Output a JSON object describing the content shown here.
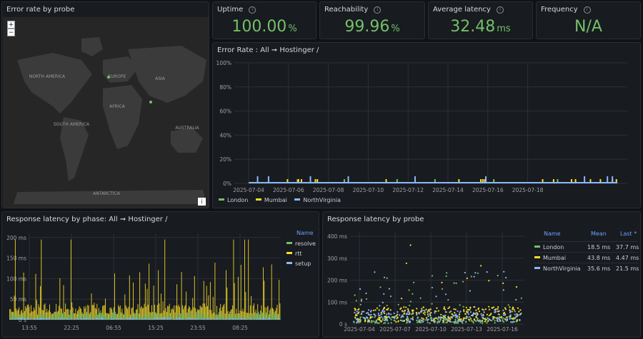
{
  "map_panel": {
    "title": "Error rate by probe",
    "zoom_in": "+",
    "zoom_out": "−",
    "info_button": "i",
    "labels": [
      "NORTH AMERICA",
      "EUROPE",
      "ASIA",
      "AFRICA",
      "SOUTH AMERICA",
      "AUSTRALIA",
      "ANTARCTICA"
    ]
  },
  "stats": [
    {
      "title": "Uptime",
      "value": "100.00",
      "unit": "%"
    },
    {
      "title": "Reachability",
      "value": "99.96",
      "unit": "%"
    },
    {
      "title": "Average latency",
      "value": "32.48",
      "unit": "ms"
    },
    {
      "title": "Frequency",
      "value": "N/A",
      "unit": ""
    }
  ],
  "error_rate": {
    "title": "Error Rate : All ➞ Hostinger /",
    "legend": [
      "London",
      "Mumbai",
      "NorthVirginia"
    ]
  },
  "phase": {
    "title": "Response latency by phase: All ➞ Hostinger /",
    "legend_header": "Name",
    "legend": [
      "resolve",
      "rtt",
      "setup"
    ]
  },
  "probe": {
    "title": "Response latency by probe",
    "headers": [
      "Name",
      "Mean",
      "Last *"
    ],
    "rows": [
      {
        "name": "London",
        "mean": "18.5 ms",
        "last": "37.7 ms"
      },
      {
        "name": "Mumbai",
        "mean": "43.8 ms",
        "last": "4.47 ms"
      },
      {
        "name": "NorthVirginia",
        "mean": "35.6 ms",
        "last": "21.5 ms"
      }
    ]
  },
  "colors": {
    "green": "#73bf69",
    "yellow": "#fade2a",
    "blue": "#8ab8ff",
    "legend_header": "#6e9fff"
  },
  "chart_data": [
    {
      "type": "bar",
      "title": "Error Rate : All ➞ Hostinger /",
      "x_ticks": [
        "2025-07-04",
        "2025-07-06",
        "2025-07-08",
        "2025-07-10",
        "2025-07-12",
        "2025-07-14",
        "2025-07-16",
        "2025-07-18"
      ],
      "y_ticks": [
        "0%",
        "20%",
        "40%",
        "60%",
        "80%",
        "100%"
      ],
      "ylim": [
        0,
        100
      ],
      "series": [
        {
          "name": "London",
          "spikes": [
            2.45,
            4.8,
            7.45,
            9.35,
            12.3,
            15.5
          ]
        },
        {
          "name": "Mumbai",
          "spikes": [
            1.95,
            2.5,
            2.65,
            3.35,
            3.45,
            6.9,
            10.55,
            11.65,
            11.75,
            11.85,
            14.75,
            15.3,
            16.2,
            16.4,
            17.15,
            17.65,
            18.25,
            18.45
          ]
        },
        {
          "name": "NorthVirginia",
          "spikes": [
            0.45,
            1.0,
            3.1,
            5.0,
            8.35,
            11.9,
            16.85,
            18.0,
            18.25
          ]
        }
      ],
      "legend_position": "bottom-left",
      "grid": true
    },
    {
      "type": "bar",
      "title": "Response latency by phase: All ➞ Hostinger /",
      "x_ticks": [
        "13:55",
        "22:25",
        "06:55",
        "15:25",
        "23:55",
        "08:25"
      ],
      "y_ticks": [
        "0 s",
        "50 ms",
        "100 ms",
        "150 ms",
        "200 ms"
      ],
      "ylim": [
        0,
        210
      ],
      "series": [
        {
          "name": "resolve",
          "typical": 8
        },
        {
          "name": "rtt",
          "typical": 40,
          "max": 195
        },
        {
          "name": "setup",
          "typical": 5
        }
      ],
      "legend_position": "right",
      "grid": true
    },
    {
      "type": "scatter",
      "title": "Response latency by probe",
      "x_ticks": [
        "2025-07-04",
        "2025-07-07",
        "2025-07-10",
        "2025-07-13",
        "2025-07-16"
      ],
      "y_ticks": [
        "0 s",
        "100 ms",
        "200 ms",
        "300 ms",
        "400 ms"
      ],
      "ylim": [
        0,
        420
      ],
      "series": [
        {
          "name": "London",
          "mean": 18.5,
          "last": 37.7
        },
        {
          "name": "Mumbai",
          "mean": 43.8,
          "last": 4.47
        },
        {
          "name": "NorthVirginia",
          "mean": 35.6,
          "last": 21.5
        }
      ],
      "legend_position": "right",
      "grid": true
    }
  ]
}
